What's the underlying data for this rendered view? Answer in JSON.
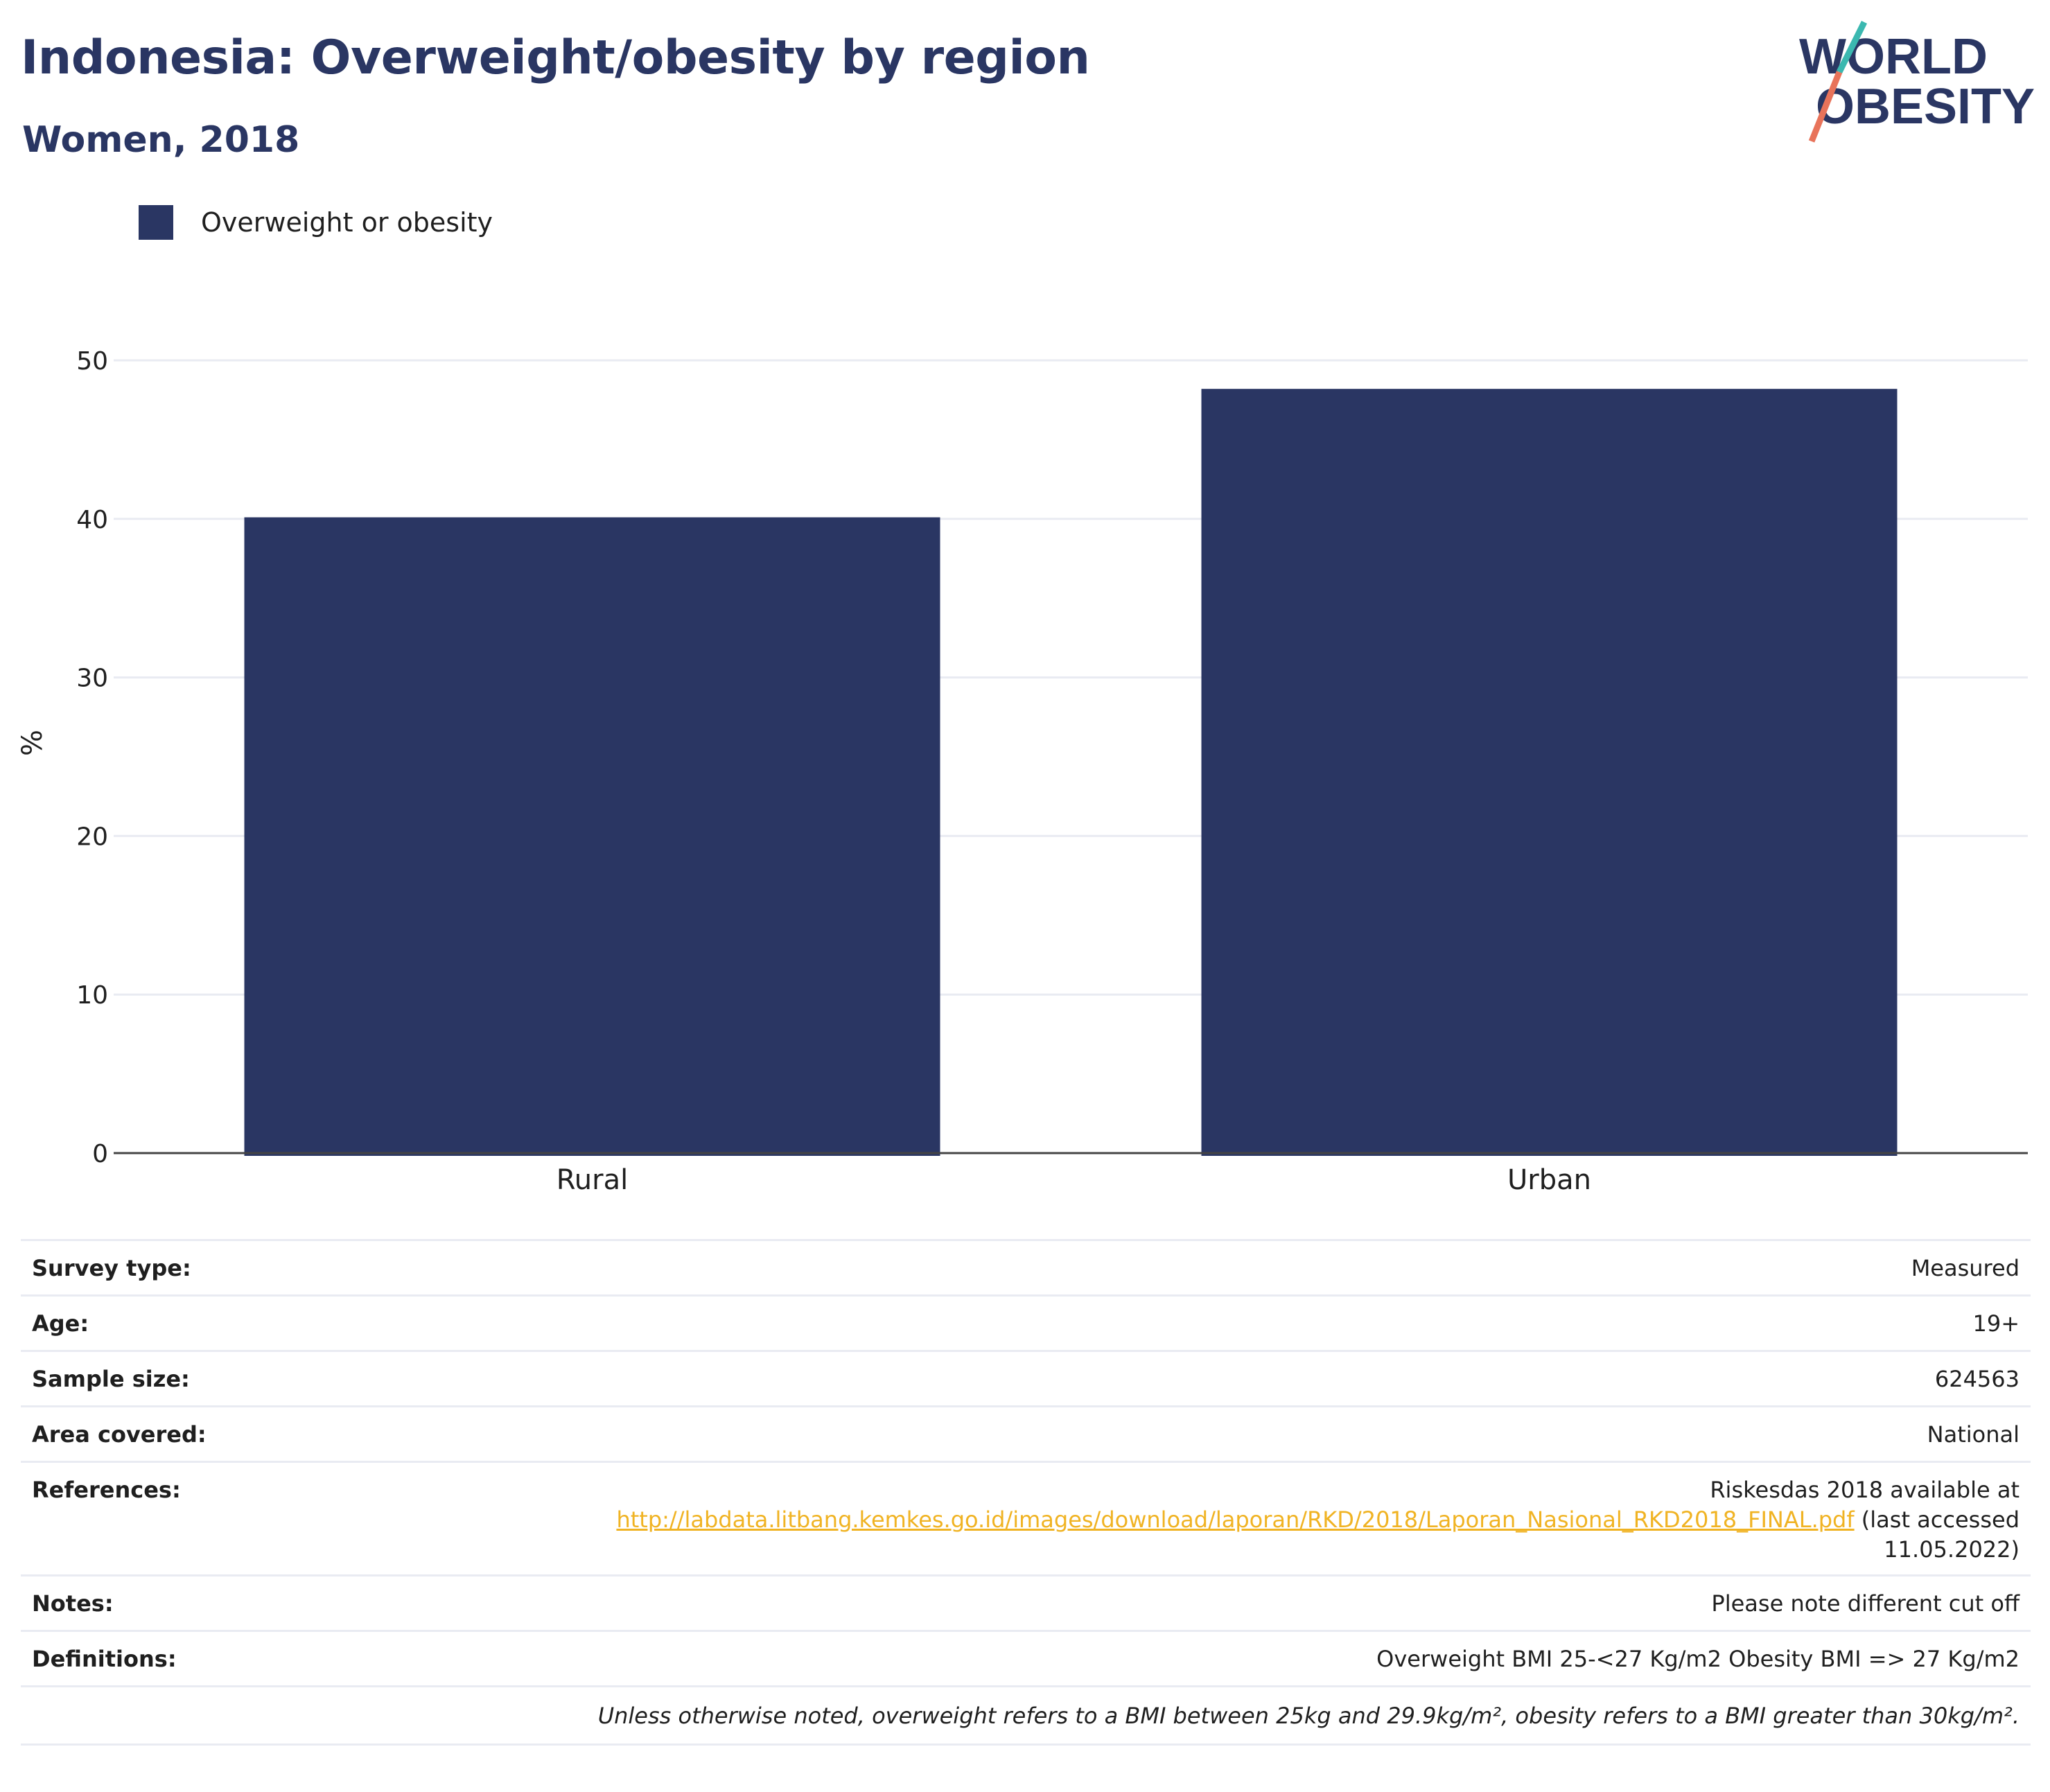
{
  "header": {
    "title": "Indonesia: Overweight/obesity by region",
    "subtitle": "Women, 2018"
  },
  "logo": {
    "line1": "WORLD",
    "line2": "OBESITY",
    "colors": {
      "text": "#2a3663",
      "accent_teal": "#3bb8b0",
      "accent_coral": "#e8735a"
    }
  },
  "legend": {
    "label": "Overweight or obesity",
    "color": "#2a3663"
  },
  "chart_data": {
    "type": "bar",
    "categories": [
      "Rural",
      "Urban"
    ],
    "series": [
      {
        "name": "Overweight or obesity",
        "values": [
          40.1,
          48.2
        ],
        "color": "#2a3663"
      }
    ],
    "ylabel": "%",
    "ylim": [
      0,
      50
    ],
    "yticks": [
      0,
      10,
      20,
      30,
      40,
      50
    ],
    "grid": true
  },
  "info": {
    "rows": [
      {
        "key": "Survey type:",
        "value": "Measured"
      },
      {
        "key": "Age:",
        "value": "19+"
      },
      {
        "key": "Sample size:",
        "value": "624563"
      },
      {
        "key": "Area covered:",
        "value": "National"
      },
      {
        "key": "References:",
        "value_prefix": "Riskesdas 2018 available at",
        "link": "http://labdata.litbang.kemkes.go.id/images/download/laporan/RKD/2018/Laporan_Nasional_RKD2018_FINAL.pdf",
        "value_suffix_1": " (last accessed",
        "value_suffix_2": "11.05.2022)"
      },
      {
        "key": "Notes:",
        "value": "Please note different cut off"
      },
      {
        "key": "Definitions:",
        "value": "Overweight BMI 25-<27 Kg/m2 Obesity BMI => 27 Kg/m2"
      }
    ],
    "footnote": "Unless otherwise noted, overweight refers to a BMI between 25kg and 29.9kg/m², obesity refers to a BMI greater than 30kg/m²."
  }
}
